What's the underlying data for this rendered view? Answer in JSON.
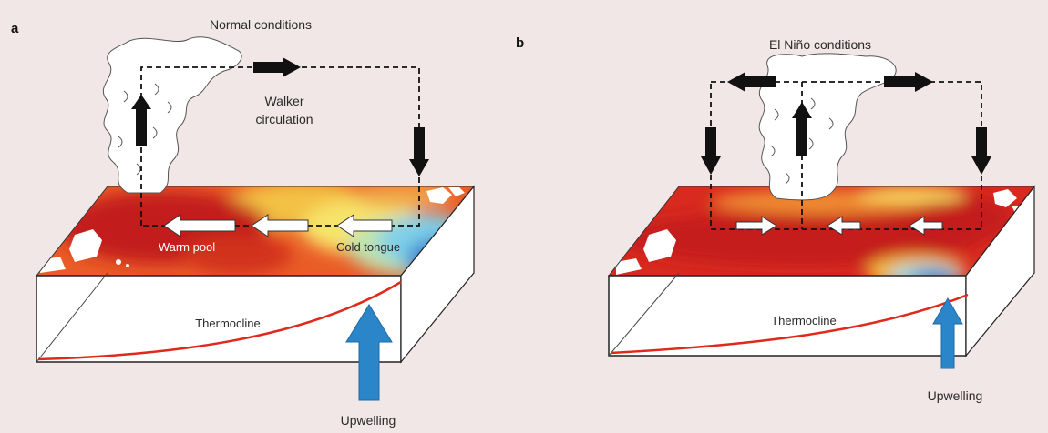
{
  "panels": [
    {
      "letter": "a",
      "title": "Normal conditions",
      "circulation_label_line1": "Walker",
      "circulation_label_line2": "circulation",
      "warm_label": "Warm pool",
      "cold_label": "Cold tongue",
      "thermocline_label": "Thermocline",
      "upwelling_label": "Upwelling"
    },
    {
      "letter": "b",
      "title": "El Niño conditions",
      "thermocline_label": "Thermocline",
      "upwelling_label": "Upwelling"
    }
  ],
  "colors": {
    "background": "#f2e7e7",
    "warm": "#d7261e",
    "cold": "#2f6fc4",
    "thermocline": "#e0291c",
    "upwelling_arrow": "#2b86c9",
    "circulation": "#111111"
  },
  "icons": [
    "cloud",
    "dashed-circulation-loop",
    "wind-arrow",
    "upwelling-arrow",
    "land-mass"
  ]
}
